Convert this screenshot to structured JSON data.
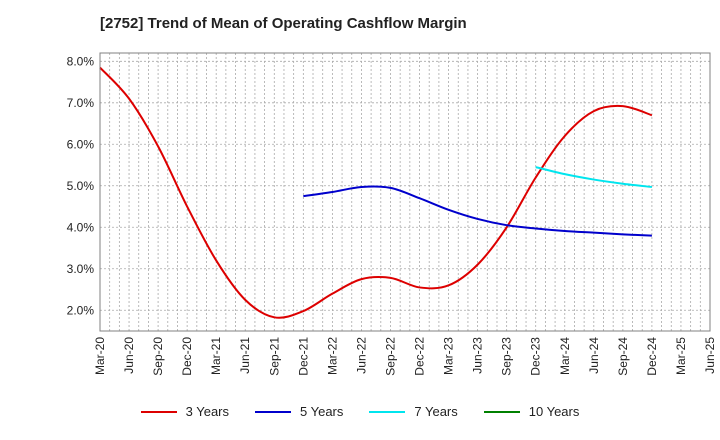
{
  "chart_data": {
    "type": "line",
    "title": "[2752]  Trend of Mean of Operating Cashflow Margin",
    "xlabel": "",
    "ylabel": "",
    "x": [
      "Mar-20",
      "Jun-20",
      "Sep-20",
      "Dec-20",
      "Mar-21",
      "Jun-21",
      "Sep-21",
      "Dec-21",
      "Mar-22",
      "Jun-22",
      "Sep-22",
      "Dec-22",
      "Mar-23",
      "Jun-23",
      "Sep-23",
      "Dec-23",
      "Mar-24",
      "Jun-24",
      "Sep-24",
      "Dec-24",
      "Mar-25",
      "Jun-25"
    ],
    "yticks": [
      "2.0%",
      "3.0%",
      "4.0%",
      "5.0%",
      "6.0%",
      "7.0%",
      "8.0%"
    ],
    "ylim": [
      1.5,
      8.2
    ],
    "grid": true,
    "legend_position": "bottom",
    "series": [
      {
        "name": "3 Years",
        "color": "#dd0000",
        "values": [
          7.85,
          7.1,
          5.95,
          4.5,
          3.2,
          2.25,
          1.83,
          1.98,
          2.4,
          2.75,
          2.78,
          2.55,
          2.6,
          3.1,
          4.0,
          5.2,
          6.2,
          6.8,
          6.92,
          6.7,
          null,
          null
        ]
      },
      {
        "name": "5 Years",
        "color": "#0000cc",
        "values": [
          null,
          null,
          null,
          null,
          null,
          null,
          null,
          4.75,
          4.85,
          4.97,
          4.95,
          4.7,
          4.42,
          4.2,
          4.05,
          3.97,
          3.91,
          3.87,
          3.83,
          3.8,
          null,
          null
        ]
      },
      {
        "name": "7 Years",
        "color": "#00e5ee",
        "values": [
          null,
          null,
          null,
          null,
          null,
          null,
          null,
          null,
          null,
          null,
          null,
          null,
          null,
          null,
          null,
          5.45,
          5.28,
          5.15,
          5.05,
          4.97,
          null,
          null
        ]
      },
      {
        "name": "10 Years",
        "color": "#008000",
        "values": [
          null,
          null,
          null,
          null,
          null,
          null,
          null,
          null,
          null,
          null,
          null,
          null,
          null,
          null,
          null,
          null,
          null,
          null,
          null,
          null,
          null,
          null
        ]
      }
    ]
  }
}
